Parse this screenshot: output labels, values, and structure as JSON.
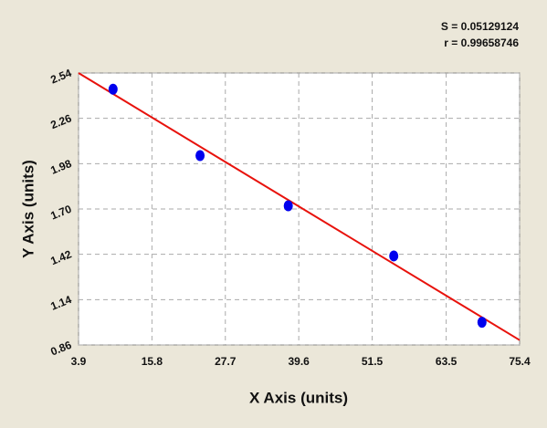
{
  "chart_data": {
    "type": "scatter",
    "annotations": [
      "S = 0.05129124",
      "r = 0.99658746"
    ],
    "x_label": "X Axis (units)",
    "y_label": "Y Axis (units)",
    "x": [
      9.5,
      23.6,
      37.9,
      55.0,
      69.3
    ],
    "values": [
      2.44,
      2.03,
      1.72,
      1.41,
      1.0
    ],
    "color": "#0000ee",
    "fit_line": {
      "x": [
        3.9,
        75.4
      ],
      "values": [
        2.54,
        0.89
      ],
      "color": "#e8120c"
    },
    "xlim": [
      3.9,
      75.4
    ],
    "xticks": [
      3.9,
      15.8,
      27.7,
      39.6,
      51.5,
      63.5,
      75.4
    ],
    "ylim": [
      0.86,
      2.54
    ],
    "yticks": [
      0.86,
      1.14,
      1.42,
      {
        "value": 1.7,
        "label": "1.70"
      },
      1.98,
      2.26,
      2.54
    ],
    "grid": true
  }
}
